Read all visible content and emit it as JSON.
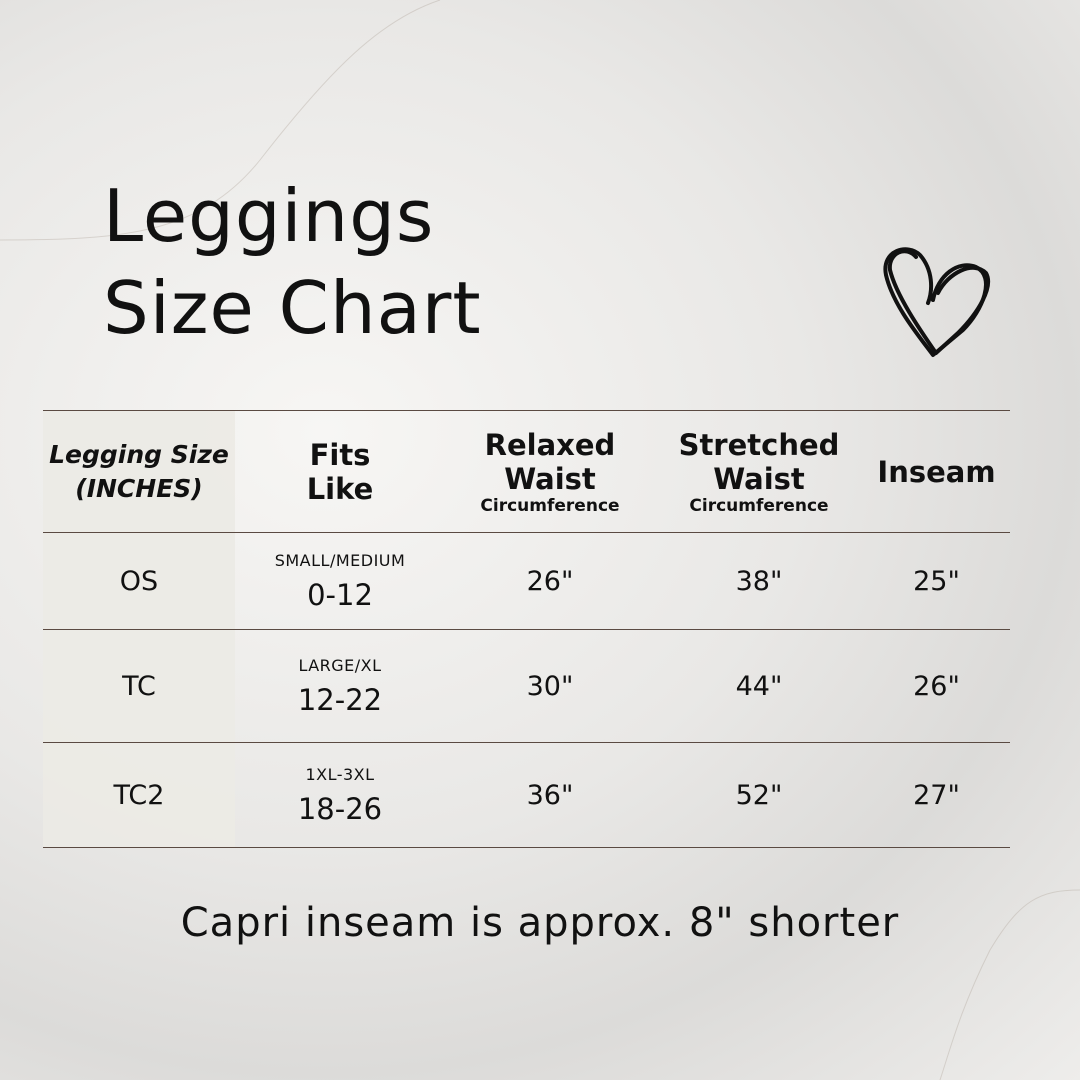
{
  "title": {
    "line1": "Leggings",
    "line2": "Size Chart"
  },
  "icons": {
    "heart": "heart-outline-icon"
  },
  "table": {
    "headers": [
      {
        "line1": "Legging Size",
        "line2": "(INCHES)"
      },
      {
        "line1": "Fits",
        "line2": "Like"
      },
      {
        "line1": "Relaxed",
        "line2": "Waist",
        "sub": "Circumference"
      },
      {
        "line1": "Stretched",
        "line2": "Waist",
        "sub": "Circumference"
      },
      {
        "line1": "Inseam"
      }
    ],
    "rows": [
      {
        "size": "OS",
        "fits_label": "SMALL/MEDIUM",
        "fits_range": "0-12",
        "relaxed": "26\"",
        "stretched": "38\"",
        "inseam": "25\""
      },
      {
        "size": "TC",
        "fits_label": "LARGE/XL",
        "fits_range": "12-22",
        "relaxed": "30\"",
        "stretched": "44\"",
        "inseam": "26\""
      },
      {
        "size": "TC2",
        "fits_label": "1XL-3XL",
        "fits_range": "18-26",
        "relaxed": "36\"",
        "stretched": "52\"",
        "inseam": "27\""
      }
    ]
  },
  "footer": "Capri inseam is approx. 8\" shorter"
}
